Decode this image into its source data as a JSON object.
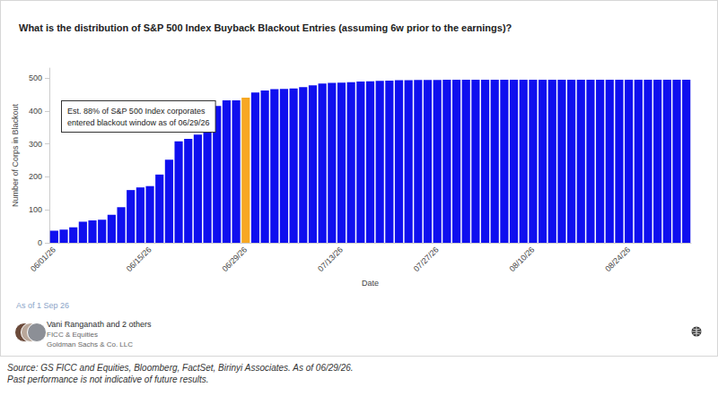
{
  "chart_data": {
    "type": "bar",
    "title": "What is the distribution of S&P 500 Index Buyback Blackout Entries (assuming 6w prior to the earnings)?",
    "x_label": "Date",
    "y_label": "Number of Corps in Blackout",
    "categories": [
      "06/01/26",
      null,
      null,
      null,
      null,
      null,
      null,
      null,
      null,
      null,
      "06/15/26",
      null,
      null,
      null,
      null,
      null,
      null,
      null,
      null,
      null,
      "06/29/26",
      null,
      null,
      null,
      null,
      null,
      null,
      null,
      null,
      null,
      "07/13/26",
      null,
      null,
      null,
      null,
      null,
      null,
      null,
      null,
      null,
      "07/27/26",
      null,
      null,
      null,
      null,
      null,
      null,
      null,
      null,
      null,
      "08/10/26",
      null,
      null,
      null,
      null,
      null,
      null,
      null,
      null,
      null,
      "08/24/26",
      null,
      null,
      null,
      null,
      null,
      null
    ],
    "values": [
      37,
      40,
      47,
      64,
      68,
      70,
      85,
      108,
      160,
      168,
      172,
      207,
      252,
      308,
      315,
      328,
      375,
      415,
      432,
      432,
      440,
      456,
      462,
      466,
      467,
      468,
      472,
      478,
      483,
      485,
      486,
      487,
      489,
      490,
      491,
      492,
      493,
      493,
      494,
      494,
      494,
      495,
      495,
      495,
      495,
      495,
      495,
      495,
      495,
      495,
      495,
      495,
      495,
      495,
      495,
      495,
      495,
      495,
      495,
      495,
      495,
      495,
      495,
      495,
      495,
      495,
      495
    ],
    "colors": [
      "#0f0fef",
      "#0f0fef",
      "#0f0fef",
      "#0f0fef",
      "#0f0fef",
      "#0f0fef",
      "#0f0fef",
      "#0f0fef",
      "#0f0fef",
      "#0f0fef",
      "#0f0fef",
      "#0f0fef",
      "#0f0fef",
      "#0f0fef",
      "#0f0fef",
      "#0f0fef",
      "#0f0fef",
      "#0f0fef",
      "#0f0fef",
      "#0f0fef",
      "#f7a823",
      "#0f0fef",
      "#0f0fef",
      "#0f0fef",
      "#0f0fef",
      "#0f0fef",
      "#0f0fef",
      "#0f0fef",
      "#0f0fef",
      "#0f0fef",
      "#0f0fef",
      "#0f0fef",
      "#0f0fef",
      "#0f0fef",
      "#0f0fef",
      "#0f0fef",
      "#0f0fef",
      "#0f0fef",
      "#0f0fef",
      "#0f0fef",
      "#0f0fef",
      "#0f0fef",
      "#0f0fef",
      "#0f0fef",
      "#0f0fef",
      "#0f0fef",
      "#0f0fef",
      "#0f0fef",
      "#0f0fef",
      "#0f0fef",
      "#0f0fef",
      "#0f0fef",
      "#0f0fef",
      "#0f0fef",
      "#0f0fef",
      "#0f0fef",
      "#0f0fef",
      "#0f0fef",
      "#0f0fef",
      "#0f0fef",
      "#0f0fef",
      "#0f0fef",
      "#0f0fef",
      "#0f0fef",
      "#0f0fef",
      "#0f0fef",
      "#0f0fef"
    ],
    "ylim": [
      0,
      530
    ],
    "yticks": [
      0,
      100,
      200,
      300,
      400,
      500
    ],
    "grid": false,
    "annotations": [
      {
        "lines": [
          "Est. 88% of S&P 500 Index corporates",
          "entered blackout window as of 06/29/26"
        ]
      }
    ]
  },
  "footer": {
    "as_of": "As of 1 Sep 26",
    "authors": "Vani Ranganath and 2 others",
    "team": "FICC & Equities",
    "firm": "Goldman Sachs & Co. LLC"
  },
  "source": [
    "Source: GS FICC and Equities, Bloomberg, FactSet, Birinyi Associates. As of 06/29/26.",
    "Past performance is not indicative of future results."
  ]
}
